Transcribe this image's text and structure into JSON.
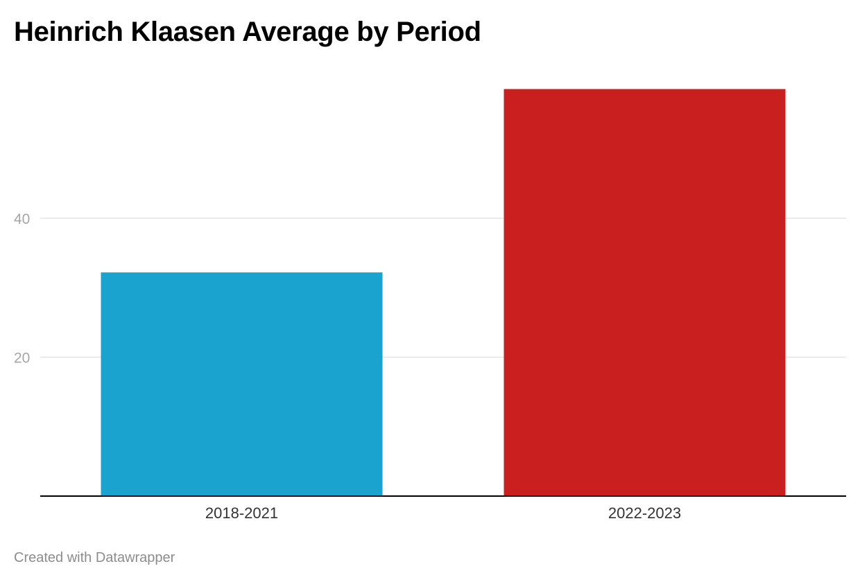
{
  "chart_data": {
    "type": "bar",
    "title": "Heinrich Klaasen Average by Period",
    "categories": [
      "2018-2021",
      "2022-2023"
    ],
    "values": [
      32.2,
      58.6
    ],
    "colors": [
      "#1aa3cf",
      "#c91f1f"
    ],
    "xlabel": "",
    "ylabel": "",
    "yticks": [
      20,
      40
    ],
    "ylim": [
      0,
      60
    ],
    "grid": true
  },
  "footer": {
    "credit": "Created with Datawrapper"
  }
}
